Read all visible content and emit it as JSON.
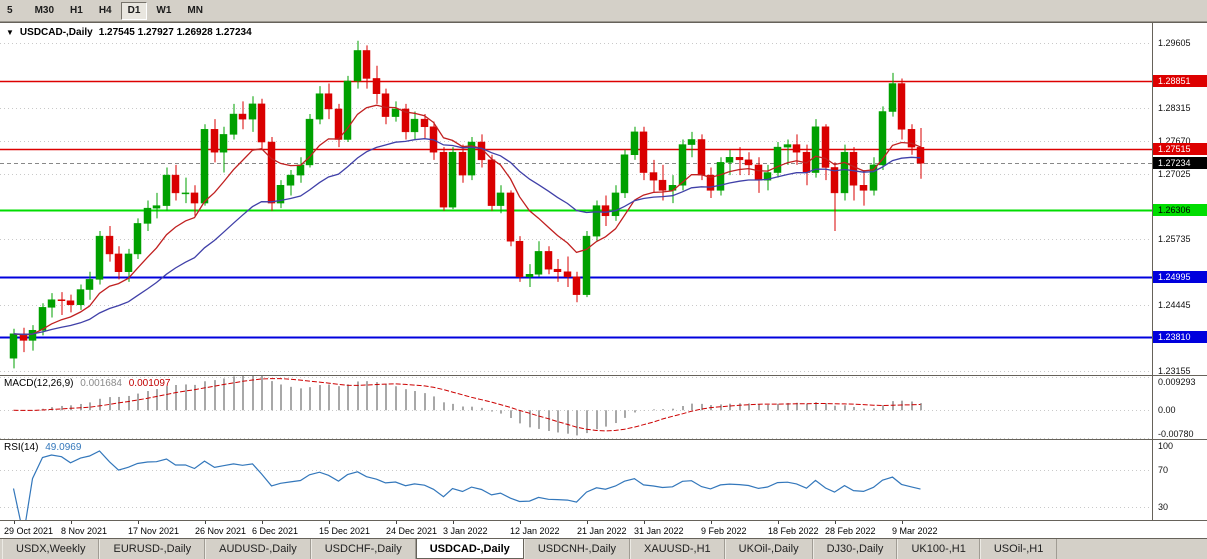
{
  "icons": {
    "chart_marker": "▼"
  },
  "toolbar": {
    "timeframes": [
      {
        "label": "5",
        "active": false
      },
      {
        "label": "M30",
        "active": false
      },
      {
        "label": "H1",
        "active": false
      },
      {
        "label": "H4",
        "active": false
      },
      {
        "label": "D1",
        "active": true
      },
      {
        "label": "W1",
        "active": false
      },
      {
        "label": "MN",
        "active": false
      }
    ]
  },
  "chart_header": {
    "symbol": "USDCAD-,Daily",
    "ohlc": "1.27545 1.27927 1.26928 1.27234"
  },
  "tabs": {
    "items": [
      {
        "label": "USDX,Weekly",
        "active": false
      },
      {
        "label": "EURUSD-,Daily",
        "active": false
      },
      {
        "label": "AUDUSD-,Daily",
        "active": false
      },
      {
        "label": "USDCHF-,Daily",
        "active": false
      },
      {
        "label": "USDCAD-,Daily",
        "active": true
      },
      {
        "label": "USDCNH-,Daily",
        "active": false
      },
      {
        "label": "XAUUSD-,H1",
        "active": false
      },
      {
        "label": "UKOil-,Daily",
        "active": false
      },
      {
        "label": "DJ30-,Daily",
        "active": false
      },
      {
        "label": "UK100-,H1",
        "active": false
      },
      {
        "label": "USOil-,H1",
        "active": false
      }
    ]
  },
  "chart_data": {
    "type": "candlestick",
    "symbol": "USDCAD",
    "timeframe": "Daily",
    "price_min": 1.2307,
    "price_max": 1.2999,
    "grid_prices": [
      1.29605,
      1.28315,
      1.2767,
      1.27025,
      1.25735,
      1.24445,
      1.23155
    ],
    "hlines": [
      {
        "price": 1.28851,
        "label": "1.28851",
        "color": "#dd0000",
        "text": "#ffffff",
        "width": 1.5
      },
      {
        "price": 1.27515,
        "label": "1.27515",
        "color": "#dd0000",
        "text": "#ffffff",
        "width": 1.5
      },
      {
        "price": 1.26306,
        "label": "1.26306",
        "color": "#00dd00",
        "text": "#000000",
        "width": 2
      },
      {
        "price": 1.24995,
        "label": "1.24995",
        "color": "#0000dd",
        "text": "#ffffff",
        "width": 2
      },
      {
        "price": 1.2381,
        "label": "1.23810",
        "color": "#0000dd",
        "text": "#ffffff",
        "width": 2
      }
    ],
    "bid": 1.27234,
    "bid_label": "1.27234",
    "colors": {
      "up": "#00a000",
      "down": "#d90000",
      "ma_fast": "#c02020",
      "ma_slow": "#4040a8",
      "grid": "#c9c9c9",
      "bid_line": "#888888",
      "bid_badge": "#000000",
      "macd_hist": "#a8a8a8",
      "macd_signal": "#cc0000",
      "rsi": "#3377bb"
    },
    "moving_averages": [
      {
        "period": 10,
        "name": "fast"
      },
      {
        "period": 25,
        "name": "slow"
      }
    ],
    "candles": [
      [
        1.234,
        1.2398,
        1.232,
        1.2388
      ],
      [
        1.2388,
        1.24,
        1.2352,
        1.2375
      ],
      [
        1.2375,
        1.2405,
        1.2355,
        1.2395
      ],
      [
        1.2395,
        1.2448,
        1.2385,
        1.244
      ],
      [
        1.244,
        1.2468,
        1.242,
        1.2455
      ],
      [
        1.2455,
        1.247,
        1.2425,
        1.2453
      ],
      [
        1.2453,
        1.2465,
        1.243,
        1.2445
      ],
      [
        1.2445,
        1.2485,
        1.2435,
        1.2475
      ],
      [
        1.2475,
        1.251,
        1.2455,
        1.2495
      ],
      [
        1.2495,
        1.259,
        1.2485,
        1.258
      ],
      [
        1.258,
        1.26,
        1.253,
        1.2545
      ],
      [
        1.2545,
        1.256,
        1.2495,
        1.251
      ],
      [
        1.251,
        1.2555,
        1.249,
        1.2545
      ],
      [
        1.2545,
        1.2615,
        1.2535,
        1.2605
      ],
      [
        1.2605,
        1.265,
        1.259,
        1.2635
      ],
      [
        1.2635,
        1.2665,
        1.2615,
        1.264
      ],
      [
        1.264,
        1.2715,
        1.263,
        1.27
      ],
      [
        1.27,
        1.272,
        1.265,
        1.2665
      ],
      [
        1.2665,
        1.2695,
        1.2645,
        1.2665
      ],
      [
        1.2665,
        1.268,
        1.262,
        1.2645
      ],
      [
        1.2645,
        1.28,
        1.264,
        1.279
      ],
      [
        1.279,
        1.281,
        1.2725,
        1.2745
      ],
      [
        1.2745,
        1.2795,
        1.2705,
        1.278
      ],
      [
        1.278,
        1.284,
        1.277,
        1.282
      ],
      [
        1.282,
        1.2845,
        1.279,
        1.281
      ],
      [
        1.281,
        1.2855,
        1.2785,
        1.284
      ],
      [
        1.284,
        1.285,
        1.275,
        1.2765
      ],
      [
        1.2765,
        1.2775,
        1.263,
        1.2645
      ],
      [
        1.2645,
        1.269,
        1.2635,
        1.268
      ],
      [
        1.268,
        1.271,
        1.266,
        1.27
      ],
      [
        1.27,
        1.2735,
        1.2685,
        1.272
      ],
      [
        1.272,
        1.282,
        1.2715,
        1.281
      ],
      [
        1.281,
        1.2875,
        1.28,
        1.286
      ],
      [
        1.286,
        1.288,
        1.281,
        1.283
      ],
      [
        1.283,
        1.284,
        1.2755,
        1.277
      ],
      [
        1.277,
        1.2895,
        1.2765,
        1.2885
      ],
      [
        1.2885,
        1.2964,
        1.287,
        1.2945
      ],
      [
        1.2945,
        1.2955,
        1.287,
        1.289
      ],
      [
        1.289,
        1.2915,
        1.284,
        1.286
      ],
      [
        1.286,
        1.287,
        1.28,
        1.2815
      ],
      [
        1.2815,
        1.2845,
        1.2805,
        1.283
      ],
      [
        1.283,
        1.284,
        1.277,
        1.2785
      ],
      [
        1.2785,
        1.2825,
        1.277,
        1.281
      ],
      [
        1.281,
        1.282,
        1.277,
        1.2795
      ],
      [
        1.2795,
        1.2805,
        1.273,
        1.2745
      ],
      [
        1.2745,
        1.2755,
        1.263,
        1.2637
      ],
      [
        1.2637,
        1.2755,
        1.2633,
        1.2745
      ],
      [
        1.2745,
        1.276,
        1.2685,
        1.27
      ],
      [
        1.27,
        1.2775,
        1.269,
        1.2765
      ],
      [
        1.2765,
        1.278,
        1.2715,
        1.273
      ],
      [
        1.273,
        1.274,
        1.263,
        1.264
      ],
      [
        1.264,
        1.268,
        1.2625,
        1.2665
      ],
      [
        1.2665,
        1.267,
        1.256,
        1.257
      ],
      [
        1.257,
        1.258,
        1.249,
        1.25
      ],
      [
        1.25,
        1.2525,
        1.248,
        1.2505
      ],
      [
        1.2505,
        1.257,
        1.25,
        1.255
      ],
      [
        1.255,
        1.256,
        1.2505,
        1.2515
      ],
      [
        1.2515,
        1.2535,
        1.249,
        1.251
      ],
      [
        1.251,
        1.254,
        1.248,
        1.25
      ],
      [
        1.25,
        1.251,
        1.245,
        1.2465
      ],
      [
        1.2465,
        1.259,
        1.246,
        1.258
      ],
      [
        1.258,
        1.265,
        1.257,
        1.264
      ],
      [
        1.264,
        1.266,
        1.26,
        1.262
      ],
      [
        1.262,
        1.268,
        1.261,
        1.2665
      ],
      [
        1.2665,
        1.275,
        1.2655,
        1.274
      ],
      [
        1.274,
        1.2795,
        1.273,
        1.2785
      ],
      [
        1.2785,
        1.2795,
        1.269,
        1.2705
      ],
      [
        1.2705,
        1.273,
        1.2665,
        1.269
      ],
      [
        1.269,
        1.272,
        1.265,
        1.267
      ],
      [
        1.267,
        1.27,
        1.2645,
        1.268
      ],
      [
        1.268,
        1.277,
        1.267,
        1.276
      ],
      [
        1.276,
        1.2785,
        1.2735,
        1.277
      ],
      [
        1.277,
        1.278,
        1.269,
        1.27
      ],
      [
        1.27,
        1.2715,
        1.2655,
        1.267
      ],
      [
        1.267,
        1.2735,
        1.266,
        1.2725
      ],
      [
        1.2725,
        1.275,
        1.27,
        1.2735
      ],
      [
        1.2735,
        1.2755,
        1.27,
        1.273
      ],
      [
        1.273,
        1.2745,
        1.27,
        1.272
      ],
      [
        1.272,
        1.2735,
        1.2665,
        1.269
      ],
      [
        1.269,
        1.272,
        1.267,
        1.2705
      ],
      [
        1.2705,
        1.2765,
        1.2695,
        1.2755
      ],
      [
        1.2755,
        1.277,
        1.272,
        1.276
      ],
      [
        1.276,
        1.278,
        1.272,
        1.2745
      ],
      [
        1.2745,
        1.276,
        1.268,
        1.2705
      ],
      [
        1.2705,
        1.281,
        1.2695,
        1.2795
      ],
      [
        1.2795,
        1.28,
        1.269,
        1.2715
      ],
      [
        1.2715,
        1.2725,
        1.259,
        1.2665
      ],
      [
        1.2665,
        1.276,
        1.265,
        1.2745
      ],
      [
        1.2745,
        1.2755,
        1.265,
        1.268
      ],
      [
        1.268,
        1.271,
        1.264,
        1.267
      ],
      [
        1.267,
        1.2735,
        1.266,
        1.272
      ],
      [
        1.272,
        1.2835,
        1.271,
        1.2825
      ],
      [
        1.2825,
        1.2901,
        1.2815,
        1.288
      ],
      [
        1.288,
        1.289,
        1.277,
        1.279
      ],
      [
        1.279,
        1.28,
        1.274,
        1.2755
      ],
      [
        1.27545,
        1.27927,
        1.26928,
        1.27234
      ]
    ],
    "date_ticks": [
      {
        "i": 0,
        "label": "29 Oct 2021"
      },
      {
        "i": 6,
        "label": "8 Nov 2021"
      },
      {
        "i": 13,
        "label": "17 Nov 2021"
      },
      {
        "i": 20,
        "label": "26 Nov 2021"
      },
      {
        "i": 26,
        "label": "6 Dec 2021"
      },
      {
        "i": 33,
        "label": "15 Dec 2021"
      },
      {
        "i": 40,
        "label": "24 Dec 2021"
      },
      {
        "i": 46,
        "label": "3 Jan 2022"
      },
      {
        "i": 53,
        "label": "12 Jan 2022"
      },
      {
        "i": 60,
        "label": "21 Jan 2022"
      },
      {
        "i": 66,
        "label": "31 Jan 2022"
      },
      {
        "i": 73,
        "label": "9 Feb 2022"
      },
      {
        "i": 80,
        "label": "18 Feb 2022"
      },
      {
        "i": 86,
        "label": "28 Feb 2022"
      },
      {
        "i": 93,
        "label": "9 Mar 2022"
      }
    ],
    "macd": {
      "label": "MACD(12,26,9)",
      "value_main": "0.001684",
      "value_signal": "0.001097",
      "ymax": 0.009293,
      "ymin": -0.0078,
      "grid": [
        0.009293,
        0,
        -0.0078
      ],
      "axis_labels": [
        "0.009293",
        "0.00",
        "-0.00780"
      ]
    },
    "rsi": {
      "label": "RSI(14)",
      "value": "49.0969",
      "levels_dashed": [
        70,
        30
      ],
      "axis_labels": [
        {
          "value": 100,
          "label": "100"
        },
        {
          "value": 70,
          "label": "70"
        },
        {
          "value": 30,
          "label": "30"
        }
      ]
    }
  }
}
